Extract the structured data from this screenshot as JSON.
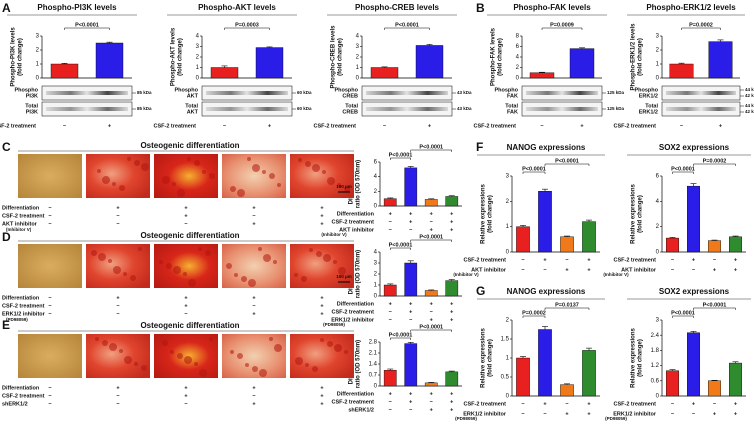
{
  "panel_labels": [
    "A",
    "B",
    "C",
    "D",
    "E",
    "F",
    "G"
  ],
  "chart_data": [
    {
      "type": "bar",
      "title": "Phospho-PI3K levels",
      "y_label": [
        "Phospho-PI3K levels",
        "(fold change)"
      ],
      "ylim": [
        0,
        3
      ],
      "yticks": [
        0,
        1,
        2,
        3
      ],
      "values": [
        1.0,
        2.5
      ],
      "errors": [
        0.05,
        0.06
      ],
      "colors": [
        "#e8201f",
        "#2a1de8"
      ],
      "annotations": [
        "P<0.0001"
      ],
      "conditions": [
        {
          "label": "CSF-2 treatment",
          "marks": [
            "−",
            "+"
          ]
        }
      ],
      "blot": [
        {
          "label": [
            "Phospho",
            "PI3K"
          ],
          "sizes": [
            "85 kDa"
          ]
        },
        {
          "label": [
            "Total",
            "PI3K"
          ],
          "sizes": [
            "85 kDa"
          ]
        }
      ]
    },
    {
      "type": "bar",
      "title": "Phospho-AKT levels",
      "y_label": [
        "Phospho-AKT levels",
        "(fold change)"
      ],
      "ylim": [
        0,
        4
      ],
      "yticks": [
        0,
        1,
        2,
        3,
        4
      ],
      "values": [
        1.0,
        2.9
      ],
      "errors": [
        0.15,
        0.06
      ],
      "colors": [
        "#e8201f",
        "#2a1de8"
      ],
      "annotations": [
        "P=0.0003"
      ],
      "conditions": [
        {
          "label": "CSF-2 treatment",
          "marks": [
            "−",
            "+"
          ]
        }
      ],
      "blot": [
        {
          "label": [
            "Phospho",
            "AKT"
          ],
          "sizes": [
            "60 kDa"
          ]
        },
        {
          "label": [
            "Total",
            "AKT"
          ],
          "sizes": [
            "60 kDa"
          ]
        }
      ]
    },
    {
      "type": "bar",
      "title": "Phospho-CREB levels",
      "y_label": [
        "Phospho-CREB levels",
        "(fold change)"
      ],
      "ylim": [
        0,
        4
      ],
      "yticks": [
        0,
        1,
        2,
        3,
        4
      ],
      "values": [
        1.0,
        3.1
      ],
      "errors": [
        0.06,
        0.1
      ],
      "colors": [
        "#e8201f",
        "#2a1de8"
      ],
      "annotations": [
        "P<0.0001"
      ],
      "conditions": [
        {
          "label": "CSF-2 treatment",
          "marks": [
            "−",
            "+"
          ]
        }
      ],
      "blot": [
        {
          "label": [
            "Phospho",
            "CREB"
          ],
          "sizes": [
            "43 kDa"
          ]
        },
        {
          "label": [
            "Total",
            "CREB"
          ],
          "sizes": [
            "43 kDa"
          ]
        }
      ]
    },
    {
      "type": "bar",
      "title": "Phospho-FAK levels",
      "y_label": [
        "Phospho-FAK levels",
        "(fold change)"
      ],
      "ylim": [
        0,
        8
      ],
      "yticks": [
        0,
        2,
        4,
        6,
        8
      ],
      "values": [
        1.0,
        5.6
      ],
      "errors": [
        0.1,
        0.15
      ],
      "colors": [
        "#e8201f",
        "#2a1de8"
      ],
      "annotations": [
        "P=0.0009"
      ],
      "conditions": [
        {
          "label": "CSF-2 treatment",
          "marks": [
            "−",
            "+"
          ]
        }
      ],
      "blot": [
        {
          "label": [
            "Phospho",
            "FAK"
          ],
          "sizes": [
            "125 kDa"
          ]
        },
        {
          "label": [
            "Total",
            "FAK"
          ],
          "sizes": [
            "125 kDa"
          ]
        }
      ]
    },
    {
      "type": "bar",
      "title": "Phospho-ERK1/2 levels",
      "y_label": [
        "Phospho-ERK1/2 levels",
        "(fold change)"
      ],
      "ylim": [
        0,
        3
      ],
      "yticks": [
        0,
        1,
        2,
        3
      ],
      "values": [
        1.0,
        2.6
      ],
      "errors": [
        0.06,
        0.12
      ],
      "colors": [
        "#e8201f",
        "#2a1de8"
      ],
      "annotations": [
        "P=0.0002"
      ],
      "conditions": [
        {
          "label": "CSF-2 treatment",
          "marks": [
            "−",
            "+"
          ]
        }
      ],
      "blot": [
        {
          "label": [
            "Phospho",
            "ERK1/2"
          ],
          "sizes": [
            "44 kDa",
            "42 kDa"
          ]
        },
        {
          "label": [
            "Total",
            "ERK1/2"
          ],
          "sizes": [
            "44 kDa",
            "42 kDa"
          ]
        }
      ]
    },
    {
      "type": "bar",
      "y_label": [
        "Differentiation",
        "ratio (OD 570nm)"
      ],
      "ylim": [
        0,
        6
      ],
      "yticks": [
        0,
        2,
        4,
        6
      ],
      "values": [
        1.0,
        5.2,
        0.9,
        1.3
      ],
      "errors": [
        0.1,
        0.2,
        0.08,
        0.1
      ],
      "colors": [
        "#e8201f",
        "#2a1de8",
        "#f07a1a",
        "#2e8b2e"
      ],
      "annotations": [
        "P<0.0001",
        "P<0.0001"
      ],
      "conditions": [
        {
          "label": "Differentiation",
          "marks": [
            "+",
            "+",
            "+",
            "+"
          ]
        },
        {
          "label": "CSF-2 treatment",
          "marks": [
            "−",
            "+",
            "−",
            "+"
          ]
        },
        {
          "label": "AKT inhibitor",
          "sub": "(Inhibitor V)",
          "marks": [
            "−",
            "−",
            "+",
            "+"
          ]
        }
      ]
    },
    {
      "type": "bar",
      "y_label": [
        "Differentiation",
        "ratio (OD 570nm)"
      ],
      "ylim": [
        0,
        4
      ],
      "yticks": [
        0,
        1,
        2,
        3,
        4
      ],
      "values": [
        1.0,
        3.0,
        0.5,
        1.4
      ],
      "errors": [
        0.1,
        0.2,
        0.05,
        0.1
      ],
      "colors": [
        "#e8201f",
        "#2a1de8",
        "#f07a1a",
        "#2e8b2e"
      ],
      "annotations": [
        "P<0.0001",
        "P<0.0001"
      ],
      "conditions": [
        {
          "label": "Differentiation",
          "marks": [
            "+",
            "+",
            "+",
            "+"
          ]
        },
        {
          "label": "CSF-2 treatment",
          "marks": [
            "−",
            "+",
            "−",
            "+"
          ]
        },
        {
          "label": "ERK1/2 inhibitor",
          "sub": "(PD98059)",
          "marks": [
            "−",
            "−",
            "+",
            "+"
          ]
        }
      ]
    },
    {
      "type": "bar",
      "y_label": [
        "Differentiation",
        "ratio (OD 570nm)"
      ],
      "ylim": [
        0,
        2.8
      ],
      "yticks": [
        0,
        0.7,
        1.4,
        2.1,
        2.8
      ],
      "values": [
        1.0,
        2.7,
        0.2,
        0.9
      ],
      "errors": [
        0.08,
        0.08,
        0.03,
        0.05
      ],
      "colors": [
        "#e8201f",
        "#2a1de8",
        "#f07a1a",
        "#2e8b2e"
      ],
      "annotations": [
        "P<0.0001",
        "P<0.0001"
      ],
      "conditions": [
        {
          "label": "Differentiation",
          "marks": [
            "+",
            "+",
            "+",
            "+"
          ]
        },
        {
          "label": "CSF-2 treatment",
          "marks": [
            "−",
            "+",
            "−",
            "+"
          ]
        },
        {
          "label": "shERK1/2",
          "marks": [
            "−",
            "−",
            "+",
            "+"
          ]
        }
      ]
    },
    {
      "type": "bar",
      "title": "NANOG expressions",
      "y_label": [
        "Relative expressions",
        "(fold change)"
      ],
      "ylim": [
        0,
        3
      ],
      "yticks": [
        0,
        1,
        2,
        3
      ],
      "values": [
        1.0,
        2.4,
        0.6,
        1.2
      ],
      "errors": [
        0.05,
        0.08,
        0.03,
        0.06
      ],
      "colors": [
        "#e8201f",
        "#2a1de8",
        "#f07a1a",
        "#2e8b2e"
      ],
      "annotations": [
        "P<0.0001",
        "P<0.0001"
      ],
      "conditions": [
        {
          "label": "CSF-2 treatment",
          "marks": [
            "−",
            "+",
            "−",
            "+"
          ]
        },
        {
          "label": "AKT inhibitor",
          "sub": "(Inhibitor V)",
          "marks": [
            "−",
            "−",
            "+",
            "+"
          ]
        }
      ]
    },
    {
      "type": "bar",
      "title": "SOX2 expressions",
      "y_label": [
        "Relative expressions",
        "(fold change)"
      ],
      "ylim": [
        0,
        6
      ],
      "yticks": [
        0,
        2,
        4,
        6
      ],
      "values": [
        1.1,
        5.2,
        0.9,
        1.2
      ],
      "errors": [
        0.05,
        0.2,
        0.04,
        0.06
      ],
      "colors": [
        "#e8201f",
        "#2a1de8",
        "#f07a1a",
        "#2e8b2e"
      ],
      "annotations": [
        "P=0.0002",
        "P<0.0001"
      ],
      "conditions": [
        {
          "label": "CSF-2 treatment",
          "marks": [
            "−",
            "+",
            "−",
            "+"
          ]
        },
        {
          "label": "AKT inhibitor",
          "sub": "(Inhibitor V)",
          "marks": [
            "−",
            "−",
            "+",
            "+"
          ]
        }
      ]
    },
    {
      "type": "bar",
      "title": "NANOG expressions",
      "y_label": [
        "Relative expressions",
        "(fold change)"
      ],
      "ylim": [
        0,
        2
      ],
      "yticks": [
        0,
        0.5,
        1,
        1.5,
        2
      ],
      "values": [
        1.0,
        1.75,
        0.3,
        1.2
      ],
      "errors": [
        0.04,
        0.08,
        0.02,
        0.06
      ],
      "colors": [
        "#e8201f",
        "#2a1de8",
        "#f07a1a",
        "#2e8b2e"
      ],
      "annotations": [
        "P=0.0137",
        "P=0.0002"
      ],
      "conditions": [
        {
          "label": "CSF-2 treatment",
          "marks": [
            "−",
            "+",
            "−",
            "+"
          ]
        },
        {
          "label": "ERK1/2 inhibitor",
          "sub": "(PD98059)",
          "marks": [
            "−",
            "−",
            "+",
            "+"
          ]
        }
      ]
    },
    {
      "type": "bar",
      "title": "SOX2 expressions",
      "y_label": [
        "Relative expressions",
        "(fold change)"
      ],
      "ylim": [
        0,
        3
      ],
      "yticks": [
        0,
        0.6,
        1.2,
        1.8,
        2.4,
        3
      ],
      "values": [
        1.0,
        2.5,
        0.6,
        1.3
      ],
      "errors": [
        0.04,
        0.05,
        0.02,
        0.05
      ],
      "colors": [
        "#e8201f",
        "#2a1de8",
        "#f07a1a",
        "#2e8b2e"
      ],
      "annotations": [
        "P<0.0001",
        "P<0.0001"
      ],
      "conditions": [
        {
          "label": "CSF-2 treatment",
          "marks": [
            "−",
            "+",
            "−",
            "+"
          ]
        },
        {
          "label": "ERK1/2 inhibitor",
          "sub": "(PD98059)",
          "marks": [
            "−",
            "−",
            "+",
            "+"
          ]
        }
      ]
    }
  ],
  "image_rows": [
    {
      "title": "Osteogenic differentiation",
      "scale_label": "100 μm",
      "conditions": [
        {
          "label": "Differentiation",
          "marks": [
            "−",
            "+",
            "+",
            "+",
            "+"
          ]
        },
        {
          "label": "CSF-2 treatment",
          "marks": [
            "−",
            "−",
            "+",
            "−",
            "+"
          ]
        },
        {
          "label": "AKT inhibitor",
          "sub": "(Inhibitor V)",
          "marks": [
            "−",
            "−",
            "−",
            "+",
            "+"
          ]
        }
      ]
    },
    {
      "title": "Osteogenic differentiation",
      "scale_label": "100 μm",
      "conditions": [
        {
          "label": "Differentiation",
          "marks": [
            "−",
            "+",
            "+",
            "+",
            "+"
          ]
        },
        {
          "label": "CSF-2 treatment",
          "marks": [
            "−",
            "−",
            "+",
            "−",
            "+"
          ]
        },
        {
          "label": "ERK1/2 inhibitor",
          "sub": "(PD98059)",
          "marks": [
            "−",
            "−",
            "−",
            "+",
            "+"
          ]
        }
      ]
    },
    {
      "title": "Osteogenic differentiation",
      "conditions": [
        {
          "label": "Differentiation",
          "marks": [
            "−",
            "+",
            "+",
            "+",
            "+"
          ]
        },
        {
          "label": "CSF-2 treatment",
          "marks": [
            "−",
            "−",
            "+",
            "−",
            "+"
          ]
        },
        {
          "label": "shERK1/2",
          "marks": [
            "−",
            "−",
            "−",
            "+",
            "+"
          ]
        }
      ]
    }
  ]
}
